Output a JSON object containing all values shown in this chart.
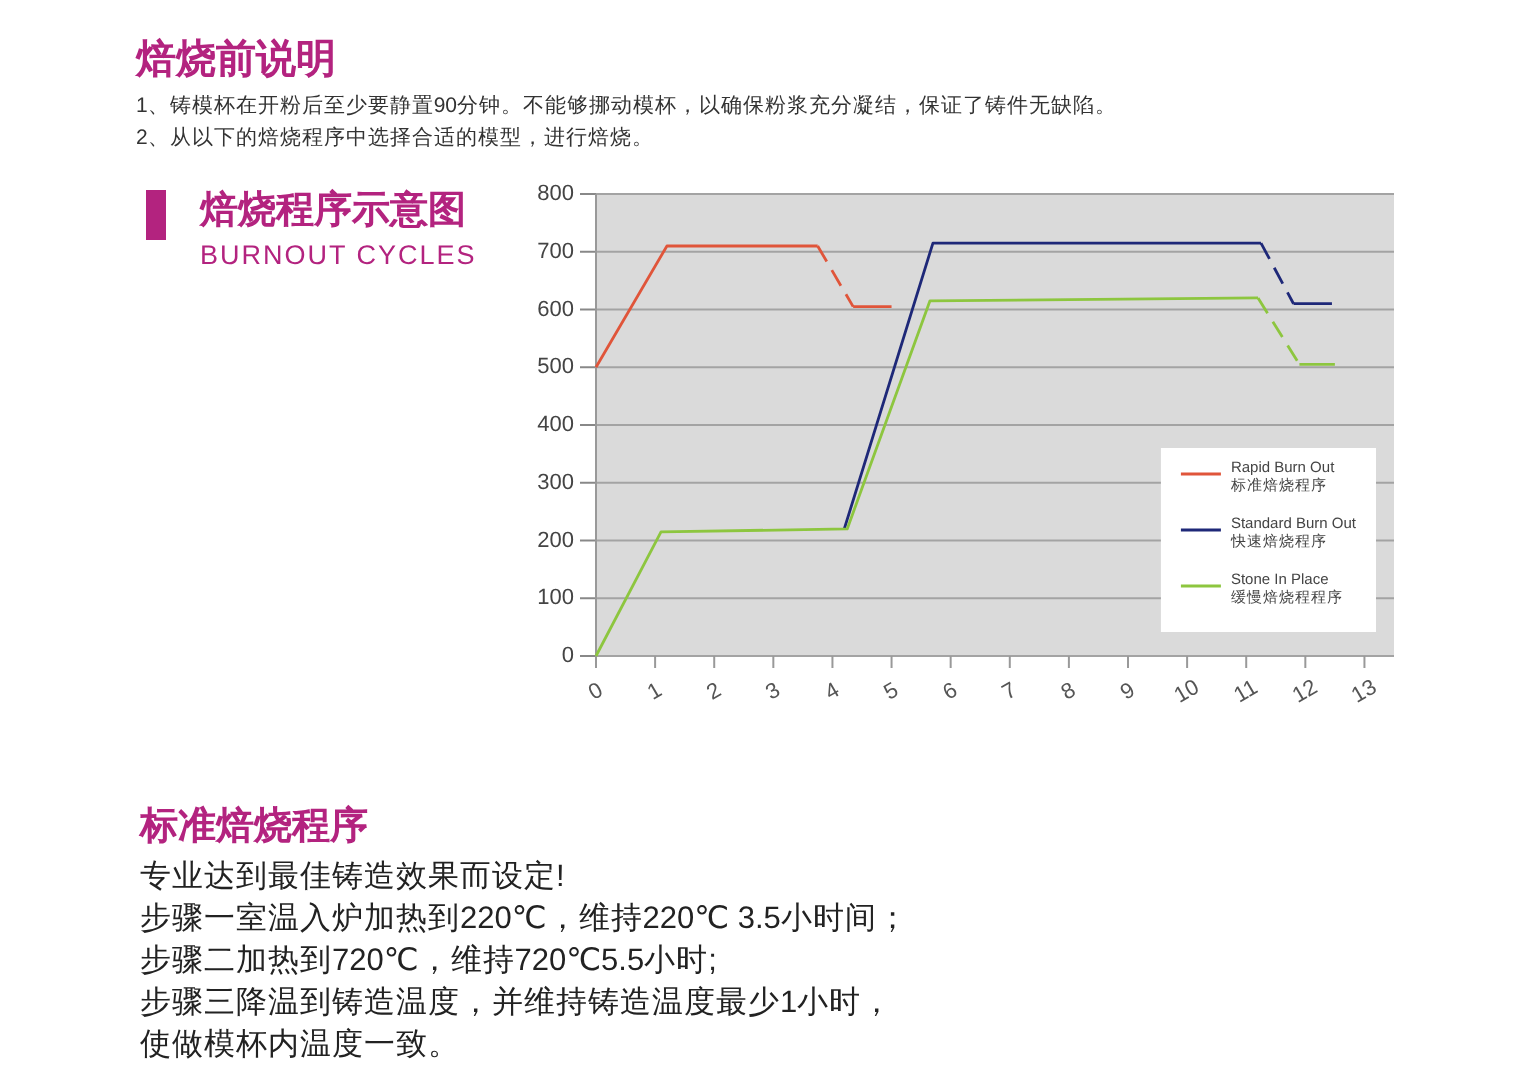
{
  "chart_data": {
    "type": "line",
    "title": "焙烧程序示意图",
    "subtitle": "BURNOUT CYCLES",
    "annotations": [
      "焙烧前说明",
      "1、铸模杯在开粉后至少要静置90分钟。不能够挪动模杯，以确保粉浆充分凝结，保证了铸件无缺陷。",
      "2、从以下的焙烧程序中选择合适的模型，进行焙烧。",
      "标准焙烧程序",
      "专业达到最佳铸造效果而设定!",
      "步骤一室温入炉加热到220℃，维持220℃ 3.5小时间；",
      "步骤二加热到720℃，维持720℃5.5小时;",
      "步骤三降温到铸造温度，并维持铸造温度最少1小时，",
      "使做模杯内温度一致。"
    ],
    "xlim": [
      0,
      13.5
    ],
    "xticks": [
      0,
      1,
      2,
      3,
      4,
      5,
      6,
      7,
      8,
      9,
      10,
      11,
      12,
      13
    ],
    "ylim": [
      0,
      800
    ],
    "yticks": [
      0,
      100,
      200,
      300,
      400,
      500,
      600,
      700,
      800
    ],
    "grid": "y",
    "legend": "bottom right",
    "series": [
      {
        "name": "Rapid Burn Out\n标准焙烧程序",
        "color": "#e0553a",
        "line_style": "solid",
        "x": [
          0,
          1.2,
          3.75
        ],
        "values": [
          500,
          710,
          710
        ]
      },
      {
        "color": "#e0553a",
        "line_style": "dashed",
        "x": [
          3.75,
          4.35
        ],
        "values": [
          710,
          605
        ]
      },
      {
        "color": "#e0553a",
        "line_style": "solid",
        "x": [
          4.35,
          5.0
        ],
        "values": [
          605,
          605
        ]
      },
      {
        "name": "Standard Burn Out\n快速焙烧程序",
        "color": "#1e2878",
        "line_style": "solid",
        "x": [
          4.2,
          5.7,
          11.25
        ],
        "values": [
          220,
          715,
          715
        ]
      },
      {
        "color": "#1e2878",
        "line_style": "dashed",
        "x": [
          11.25,
          11.8
        ],
        "values": [
          715,
          610
        ]
      },
      {
        "color": "#1e2878",
        "line_style": "solid",
        "x": [
          11.8,
          12.45
        ],
        "values": [
          610,
          610
        ]
      },
      {
        "name": "Stone In Place\n缓慢焙烧程程序",
        "color": "#8dc63f",
        "line_style": "solid",
        "x": [
          0,
          1.1,
          4.25,
          5.65,
          11.2
        ],
        "values": [
          0,
          215,
          220,
          615,
          620
        ]
      },
      {
        "color": "#8dc63f",
        "line_style": "dashed",
        "x": [
          11.2,
          11.9
        ],
        "values": [
          620,
          505
        ]
      },
      {
        "color": "#8dc63f",
        "line_style": "solid",
        "x": [
          11.9,
          12.5
        ],
        "values": [
          505,
          505
        ]
      }
    ]
  }
}
